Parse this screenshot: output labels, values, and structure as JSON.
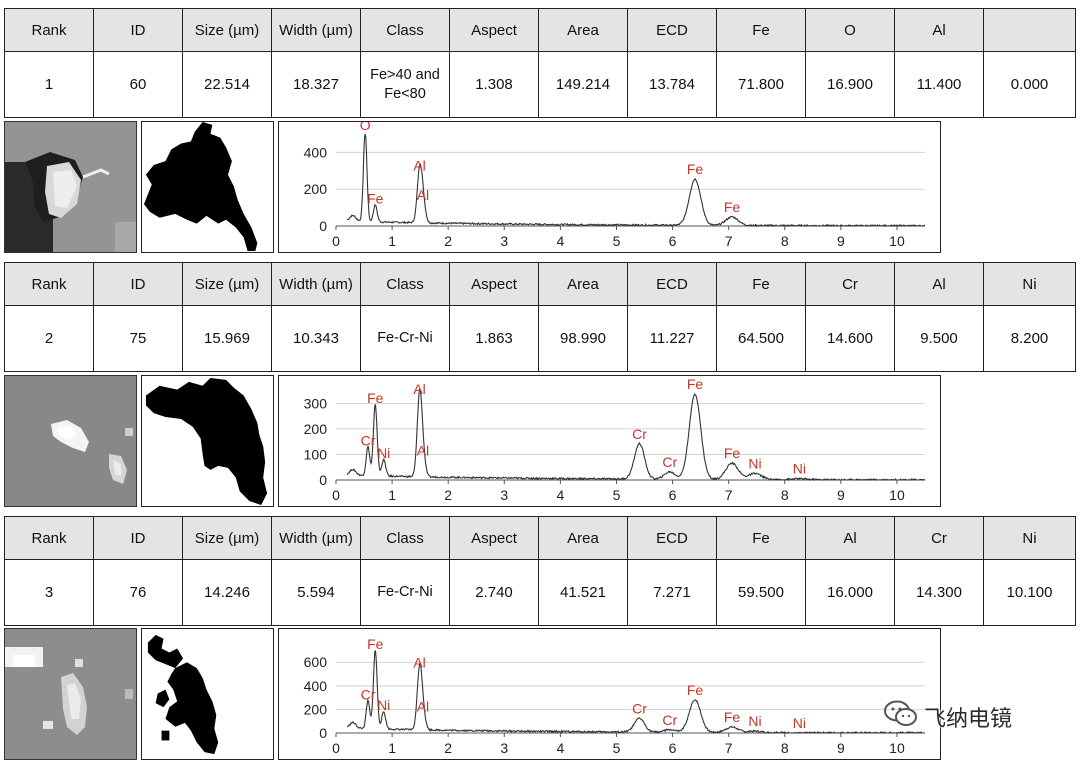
{
  "particles": [
    {
      "headers": [
        "Rank",
        "ID",
        "Size (µm)",
        "Width (µm)",
        "Class",
        "Aspect",
        "Area",
        "ECD",
        "Fe",
        "O",
        "Al",
        ""
      ],
      "values": [
        "1",
        "60",
        "22.514",
        "18.327",
        "Fe>40 and Fe<80",
        "1.308",
        "149.214",
        "13.784",
        "71.800",
        "16.900",
        "11.400",
        "0.000"
      ]
    },
    {
      "headers": [
        "Rank",
        "ID",
        "Size (µm)",
        "Width (µm)",
        "Class",
        "Aspect",
        "Area",
        "ECD",
        "Fe",
        "Cr",
        "Al",
        "Ni"
      ],
      "values": [
        "2",
        "75",
        "15.969",
        "10.343",
        "Fe-Cr-Ni",
        "1.863",
        "98.990",
        "11.227",
        "64.500",
        "14.600",
        "9.500",
        "8.200"
      ]
    },
    {
      "headers": [
        "Rank",
        "ID",
        "Size (µm)",
        "Width (µm)",
        "Class",
        "Aspect",
        "Area",
        "ECD",
        "Fe",
        "Al",
        "Cr",
        "Ni"
      ],
      "values": [
        "3",
        "76",
        "14.246",
        "5.594",
        "Fe-Cr-Ni",
        "2.740",
        "41.521",
        "7.271",
        "59.500",
        "16.000",
        "14.300",
        "10.100"
      ]
    }
  ],
  "chart_data": [
    {
      "type": "line",
      "x_ticks": [
        0,
        1,
        2,
        3,
        4,
        5,
        6,
        7,
        8,
        9,
        10
      ],
      "y_ticks": [
        0,
        200,
        400
      ],
      "xlim": [
        0,
        10.5
      ],
      "ylim": [
        0,
        500
      ],
      "grid": "horizontal",
      "peaks": [
        {
          "label": "O",
          "x": 0.52,
          "y": 500
        },
        {
          "label": "Fe",
          "x": 0.7,
          "y": 100
        },
        {
          "label": "Al",
          "x": 1.49,
          "y": 280
        },
        {
          "label": "Al",
          "x": 1.55,
          "y": 120
        },
        {
          "label": "Fe",
          "x": 6.4,
          "y": 260
        },
        {
          "label": "Fe",
          "x": 7.06,
          "y": 55
        }
      ]
    },
    {
      "type": "line",
      "x_ticks": [
        0,
        1,
        2,
        3,
        4,
        5,
        6,
        7,
        8,
        9,
        10
      ],
      "y_ticks": [
        0,
        100,
        200,
        300
      ],
      "xlim": [
        0,
        10.5
      ],
      "ylim": [
        0,
        360
      ],
      "grid": "horizontal",
      "peaks": [
        {
          "label": "Fe",
          "x": 0.7,
          "y": 285
        },
        {
          "label": "Cr",
          "x": 0.57,
          "y": 120
        },
        {
          "label": "Ni",
          "x": 0.85,
          "y": 70
        },
        {
          "label": "Al",
          "x": 1.49,
          "y": 320
        },
        {
          "label": "Al",
          "x": 1.55,
          "y": 80
        },
        {
          "label": "Cr",
          "x": 5.41,
          "y": 145
        },
        {
          "label": "Cr",
          "x": 5.95,
          "y": 35
        },
        {
          "label": "Fe",
          "x": 6.4,
          "y": 340
        },
        {
          "label": "Fe",
          "x": 7.06,
          "y": 70
        },
        {
          "label": "Ni",
          "x": 7.47,
          "y": 30
        },
        {
          "label": "Ni",
          "x": 8.26,
          "y": 10
        }
      ]
    },
    {
      "type": "line",
      "x_ticks": [
        0,
        1,
        2,
        3,
        4,
        5,
        6,
        7,
        8,
        9,
        10
      ],
      "y_ticks": [
        0,
        200,
        400,
        600
      ],
      "xlim": [
        0,
        10.5
      ],
      "ylim": [
        0,
        780
      ],
      "grid": "horizontal",
      "peaks": [
        {
          "label": "Fe",
          "x": 0.7,
          "y": 680
        },
        {
          "label": "Cr",
          "x": 0.57,
          "y": 250
        },
        {
          "label": "Ni",
          "x": 0.85,
          "y": 160
        },
        {
          "label": "Al",
          "x": 1.49,
          "y": 520
        },
        {
          "label": "Al",
          "x": 1.55,
          "y": 150
        },
        {
          "label": "Cr",
          "x": 5.41,
          "y": 130
        },
        {
          "label": "Cr",
          "x": 5.95,
          "y": 35
        },
        {
          "label": "Fe",
          "x": 6.4,
          "y": 290
        },
        {
          "label": "Fe",
          "x": 7.06,
          "y": 60
        },
        {
          "label": "Ni",
          "x": 7.47,
          "y": 25
        },
        {
          "label": "Ni",
          "x": 8.26,
          "y": 10
        }
      ]
    }
  ],
  "watermark": {
    "text": "飞纳电镜",
    "icon": "wechat-icon"
  }
}
